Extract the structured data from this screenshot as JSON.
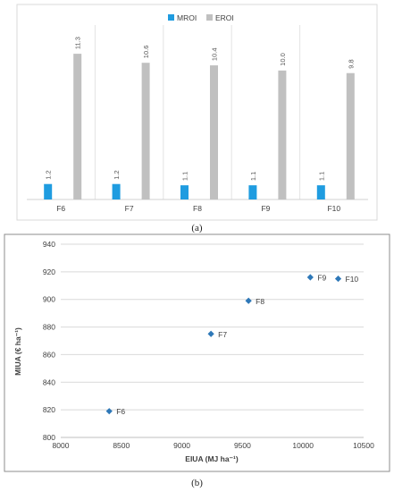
{
  "figure": {
    "caption_a": "(a)",
    "caption_b": "(b)"
  },
  "chart_data": [
    {
      "type": "bar",
      "categories": [
        "F6",
        "F7",
        "F8",
        "F9",
        "F10"
      ],
      "series": [
        {
          "name": "MROI",
          "values": [
            1.2,
            1.2,
            1.1,
            1.1,
            1.1
          ],
          "labels": [
            "1.2",
            "1.2",
            "1.1",
            "1.1",
            "1.1"
          ],
          "color": "#1f9ce0"
        },
        {
          "name": "EROI",
          "values": [
            11.3,
            10.6,
            10.4,
            10.0,
            9.8
          ],
          "labels": [
            "11.3",
            "10.6",
            "10.4",
            "10.0",
            "9.8"
          ],
          "color": "#c0c0c0"
        }
      ],
      "ylim": [
        0,
        12
      ],
      "grid": "vertical category separators",
      "legend": "top-center",
      "xlabel": "",
      "ylabel": ""
    },
    {
      "type": "scatter",
      "xlabel": "EIUA (MJ ha⁻¹)",
      "ylabel": "MIUA (€ ha⁻¹)",
      "xlim": [
        8000,
        10500
      ],
      "ylim": [
        800,
        940
      ],
      "xticks": [
        8000,
        8500,
        9000,
        9500,
        10000,
        10500
      ],
      "yticks": [
        800,
        820,
        840,
        860,
        880,
        900,
        920,
        940
      ],
      "grid": "horizontal",
      "marker_color": "#2e78b8",
      "points": [
        {
          "label": "F6",
          "x": 8400,
          "y": 819
        },
        {
          "label": "F7",
          "x": 9240,
          "y": 875
        },
        {
          "label": "F8",
          "x": 9550,
          "y": 899
        },
        {
          "label": "F9",
          "x": 10060,
          "y": 916
        },
        {
          "label": "F10",
          "x": 10290,
          "y": 915
        }
      ]
    }
  ]
}
